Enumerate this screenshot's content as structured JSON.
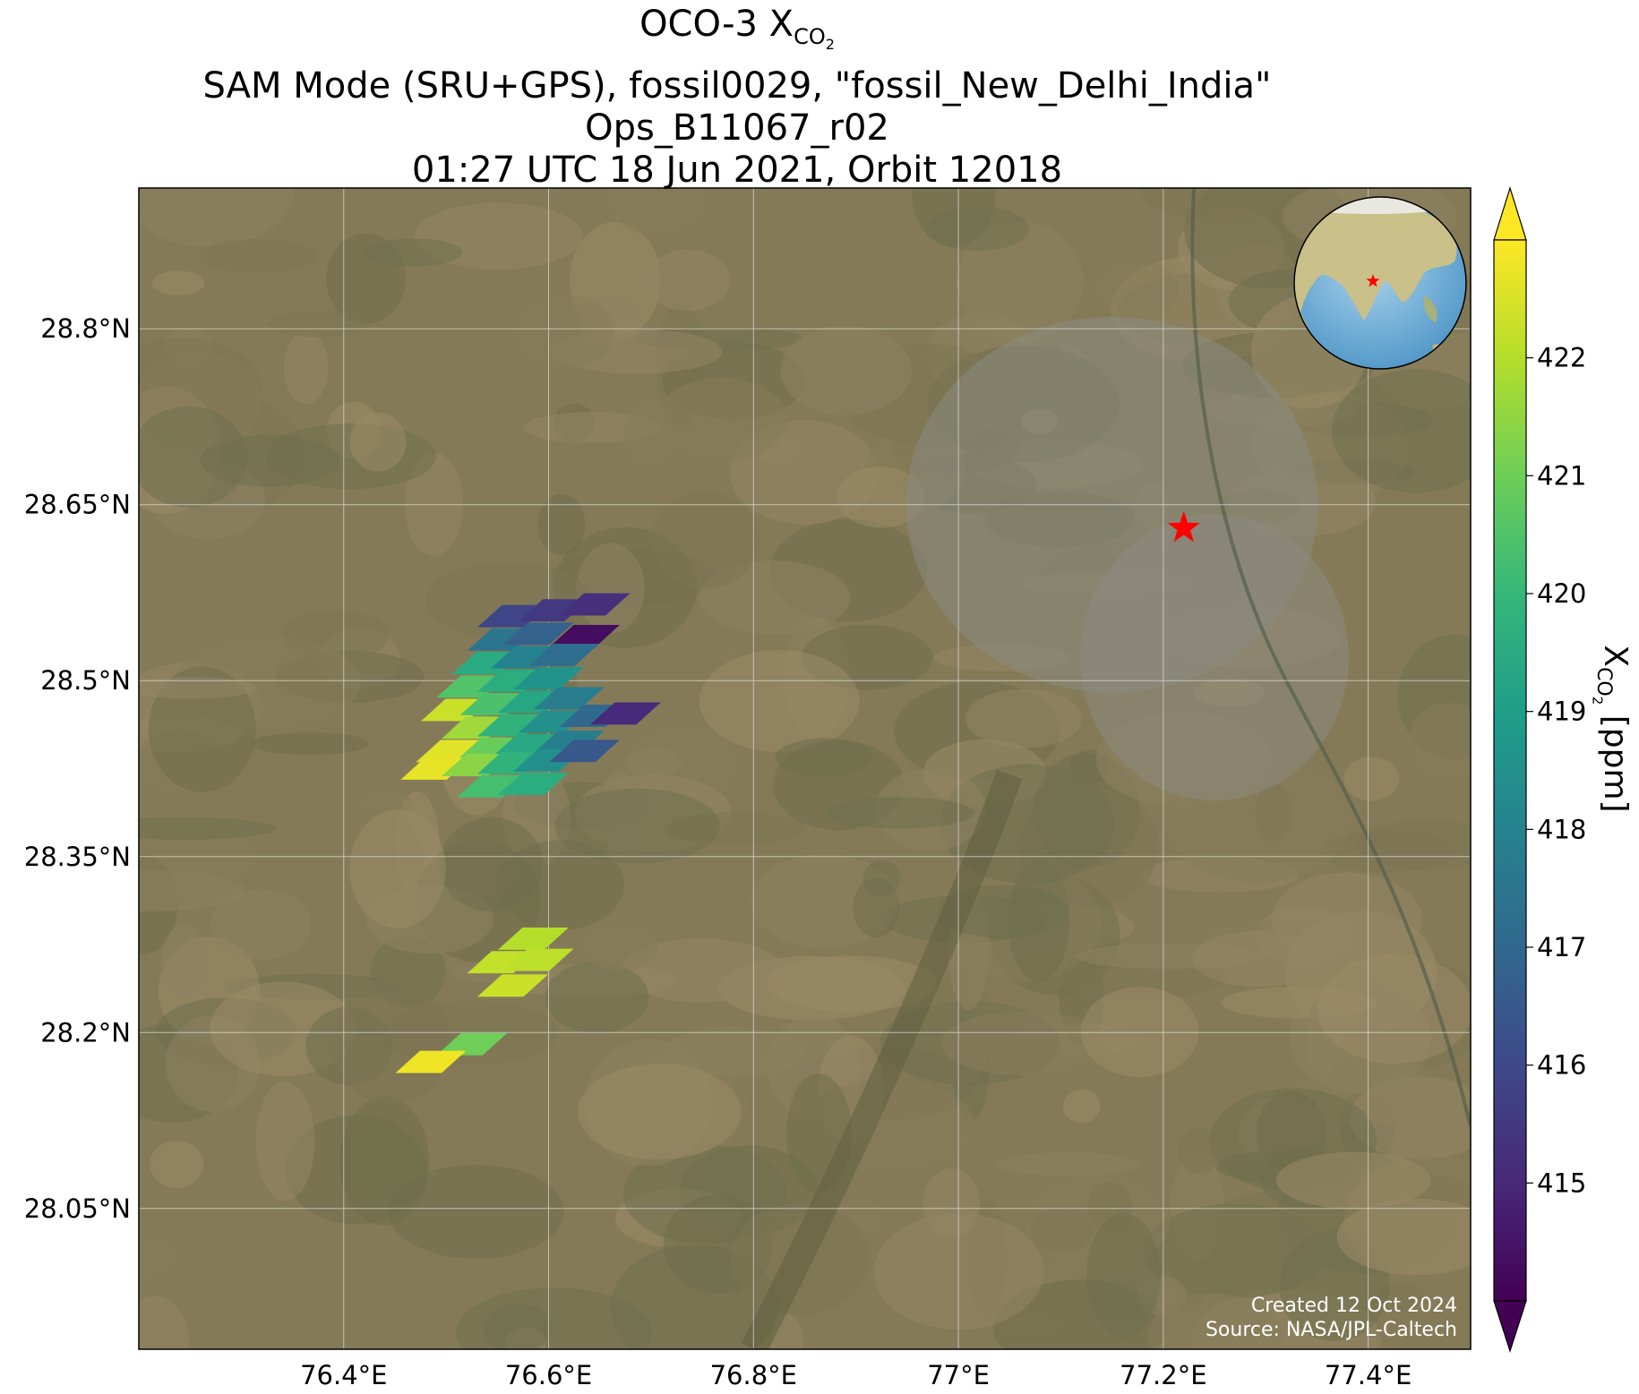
{
  "title": {
    "line1_prefix": "OCO-3 X",
    "line1_sub": "CO",
    "line1_subsub": "2",
    "line2": "SAM Mode (SRU+GPS), fossil0029, \"fossil_New_Delhi_India\"",
    "line3": "Ops_B11067_r02",
    "line4": "01:27 UTC 18 Jun 2021, Orbit 12018"
  },
  "footer": {
    "created": "Created 12 Oct 2024",
    "source": "Source: NASA/JPL-Caltech"
  },
  "colorbar": {
    "label_prefix": "X",
    "label_sub": "CO",
    "label_subsub": "2",
    "label_suffix": " [ppm]",
    "min": 414.0,
    "max": 423.0,
    "ticks": [
      415,
      416,
      417,
      418,
      419,
      420,
      421,
      422
    ],
    "colormap": "viridis",
    "extend": "both"
  },
  "colors": {
    "target_marker": "#ff0000",
    "grid": "#d9d9d9"
  },
  "chart_data": {
    "type": "heatmap",
    "projection": "lon-lat map over satellite imagery",
    "xlim": [
      76.2,
      77.5
    ],
    "ylim": [
      27.93,
      28.92
    ],
    "x_ticks": [
      76.4,
      76.6,
      76.8,
      77.0,
      77.2,
      77.4
    ],
    "x_tick_labels": [
      "76.4°E",
      "76.6°E",
      "76.8°E",
      "77°E",
      "77.2°E",
      "77.4°E"
    ],
    "y_ticks": [
      28.05,
      28.2,
      28.35,
      28.5,
      28.65,
      28.8
    ],
    "y_tick_labels": [
      "28.05°N",
      "28.2°N",
      "28.35°N",
      "28.5°N",
      "28.65°N",
      "28.8°N"
    ],
    "grid": true,
    "target": {
      "name": "fossil_New_Delhi_India",
      "lon": 77.22,
      "lat": 28.63,
      "marker": "red-star"
    },
    "footprint_shape": {
      "dlon": 0.045,
      "dlat": 0.019,
      "shear_lon": 0.024
    },
    "soundings": [
      {
        "lon": 76.565,
        "lat": 28.555,
        "xco2": 415.9
      },
      {
        "lon": 76.605,
        "lat": 28.56,
        "xco2": 415.5
      },
      {
        "lon": 76.645,
        "lat": 28.565,
        "xco2": 415.2
      },
      {
        "lon": 76.555,
        "lat": 28.535,
        "xco2": 417.5
      },
      {
        "lon": 76.59,
        "lat": 28.54,
        "xco2": 416.8
      },
      {
        "lon": 76.635,
        "lat": 28.538,
        "xco2": 414.3
      },
      {
        "lon": 76.54,
        "lat": 28.515,
        "xco2": 419.5
      },
      {
        "lon": 76.578,
        "lat": 28.52,
        "xco2": 418.0
      },
      {
        "lon": 76.615,
        "lat": 28.522,
        "xco2": 417.2
      },
      {
        "lon": 76.525,
        "lat": 28.495,
        "xco2": 420.5
      },
      {
        "lon": 76.565,
        "lat": 28.5,
        "xco2": 419.6
      },
      {
        "lon": 76.6,
        "lat": 28.502,
        "xco2": 418.6
      },
      {
        "lon": 76.51,
        "lat": 28.475,
        "xco2": 422.3
      },
      {
        "lon": 76.548,
        "lat": 28.48,
        "xco2": 420.4
      },
      {
        "lon": 76.585,
        "lat": 28.482,
        "xco2": 419.3
      },
      {
        "lon": 76.62,
        "lat": 28.485,
        "xco2": 417.8
      },
      {
        "lon": 76.53,
        "lat": 28.46,
        "xco2": 421.7
      },
      {
        "lon": 76.565,
        "lat": 28.462,
        "xco2": 419.8
      },
      {
        "lon": 76.605,
        "lat": 28.465,
        "xco2": 418.5
      },
      {
        "lon": 76.645,
        "lat": 28.47,
        "xco2": 417.0
      },
      {
        "lon": 76.675,
        "lat": 28.472,
        "xco2": 415.1
      },
      {
        "lon": 76.505,
        "lat": 28.44,
        "xco2": 422.6
      },
      {
        "lon": 76.545,
        "lat": 28.442,
        "xco2": 420.9
      },
      {
        "lon": 76.58,
        "lat": 28.445,
        "xco2": 419.4
      },
      {
        "lon": 76.62,
        "lat": 28.448,
        "xco2": 417.9
      },
      {
        "lon": 76.49,
        "lat": 28.425,
        "xco2": 422.7
      },
      {
        "lon": 76.53,
        "lat": 28.428,
        "xco2": 421.4
      },
      {
        "lon": 76.565,
        "lat": 28.43,
        "xco2": 419.8
      },
      {
        "lon": 76.6,
        "lat": 28.432,
        "xco2": 418.5
      },
      {
        "lon": 76.635,
        "lat": 28.44,
        "xco2": 416.5
      },
      {
        "lon": 76.545,
        "lat": 28.41,
        "xco2": 420.3
      },
      {
        "lon": 76.585,
        "lat": 28.412,
        "xco2": 419.6
      },
      {
        "lon": 76.585,
        "lat": 28.28,
        "xco2": 422.0
      },
      {
        "lon": 76.555,
        "lat": 28.26,
        "xco2": 422.2
      },
      {
        "lon": 76.59,
        "lat": 28.262,
        "xco2": 422.1
      },
      {
        "lon": 76.565,
        "lat": 28.24,
        "xco2": 422.3
      },
      {
        "lon": 76.525,
        "lat": 28.19,
        "xco2": 421.0
      },
      {
        "lon": 76.485,
        "lat": 28.175,
        "xco2": 422.8
      }
    ]
  }
}
